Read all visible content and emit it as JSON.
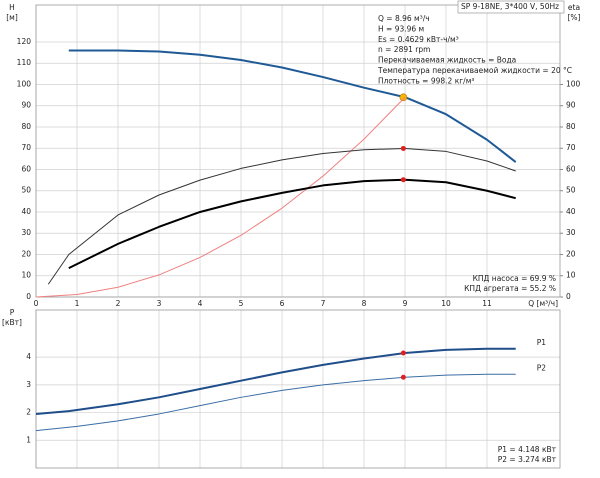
{
  "chart_data": [
    {
      "type": "line",
      "title": "SP 9-18NE, 3*400 V, 50Hz",
      "ylabel": [
        "H",
        "[м]"
      ],
      "y2label": [
        "eta",
        "[%]"
      ],
      "xlabel": "Q [м³/ч]",
      "xlim": [
        0,
        12.78
      ],
      "xticks": [
        0,
        1,
        2,
        3,
        4,
        5,
        6,
        7,
        8,
        9,
        10,
        11
      ],
      "ylim": [
        0,
        137.4
      ],
      "yticks": [
        0,
        10,
        20,
        30,
        40,
        50,
        60,
        70,
        80,
        90,
        100,
        110,
        120
      ],
      "y2lim": [
        0,
        137.4
      ],
      "y2ticks": [
        0,
        10,
        20,
        30,
        40,
        50,
        60,
        70,
        80,
        90,
        100
      ],
      "grid": true,
      "annotations": [
        "Q = 8.96 м³/ч",
        "H = 93.96 м",
        "Es = 0.4629 кВт-ч/м³",
        "n = 2891 rpm",
        "Перекачиваемая жидкость = Вода",
        "Температура перекачиваемой жидкости = 20 °C",
        "Плотность = 998.2 кг/м³"
      ],
      "efficiency_notes": [
        "КПД насоса = 69.9 %",
        "КПД агрегата = 55.2 %"
      ],
      "series": [
        {
          "color": "#1f5a96",
          "width": 2,
          "x": [
            0.8,
            2,
            3,
            4,
            5,
            6,
            7,
            8,
            9,
            10,
            11,
            11.7
          ],
          "values": [
            116,
            116,
            115.5,
            114,
            111.5,
            108,
            103.5,
            98.5,
            94,
            86,
            74,
            63.5
          ],
          "marker": {
            "x": 8.96,
            "value": 93.96,
            "color": "#f5b800"
          }
        },
        {
          "color": "#f08080",
          "width": 1,
          "x": [
            0,
            1,
            2,
            3,
            4,
            5,
            6,
            7,
            8,
            9
          ],
          "values": [
            0,
            1.2,
            4.6,
            10.4,
            18.6,
            29,
            41.8,
            56.9,
            74.3,
            94
          ]
        },
        {
          "color": "#333333",
          "width": 1,
          "axis": "y2",
          "x": [
            0.3,
            0.8,
            2,
            3,
            4,
            5,
            6,
            7,
            8,
            9,
            10,
            11,
            11.7
          ],
          "values": [
            6,
            20,
            38.6,
            48,
            55,
            60.5,
            64.5,
            67.5,
            69.3,
            69.9,
            68.5,
            64,
            59.3
          ],
          "marker": {
            "x": 8.96,
            "value": 69.9,
            "color": "#e02020"
          }
        },
        {
          "color": "#000000",
          "width": 2,
          "axis": "y2",
          "x": [
            0.8,
            2,
            3,
            4,
            5,
            6,
            7,
            8,
            9,
            10,
            11,
            11.7
          ],
          "values": [
            13.6,
            25,
            33,
            40,
            45,
            49,
            52.5,
            54.5,
            55.2,
            54,
            50,
            46.5
          ],
          "marker": {
            "x": 8.96,
            "value": 55.2,
            "color": "#e02020"
          }
        }
      ]
    },
    {
      "type": "line",
      "ylabel": [
        "P",
        "[кВт]"
      ],
      "xlim": [
        0,
        12.78
      ],
      "ylim": [
        0,
        5.7
      ],
      "yticks": [
        1,
        2,
        3,
        4
      ],
      "grid": true,
      "annotations": [
        "P1 = 4.148 кВт",
        "P2 = 3.274 кВт"
      ],
      "series": [
        {
          "name": "P1",
          "color": "#1f4e8a",
          "width": 2,
          "x": [
            0,
            0.8,
            2,
            3,
            4,
            5,
            6,
            7,
            8,
            9,
            10,
            11,
            11.7
          ],
          "values": [
            1.95,
            2.05,
            2.3,
            2.55,
            2.85,
            3.15,
            3.45,
            3.72,
            3.95,
            4.148,
            4.26,
            4.3,
            4.3
          ],
          "marker": {
            "x": 8.96,
            "value": 4.148,
            "color": "#e02020"
          }
        },
        {
          "name": "P2",
          "color": "#3a6ea5",
          "width": 1,
          "x": [
            0,
            1,
            2,
            3,
            4,
            5,
            6,
            7,
            8,
            9,
            10,
            11,
            11.7
          ],
          "values": [
            1.35,
            1.5,
            1.7,
            1.95,
            2.25,
            2.55,
            2.8,
            3.0,
            3.15,
            3.274,
            3.35,
            3.38,
            3.38
          ],
          "marker": {
            "x": 8.96,
            "value": 3.274,
            "color": "#e02020"
          }
        }
      ]
    }
  ]
}
